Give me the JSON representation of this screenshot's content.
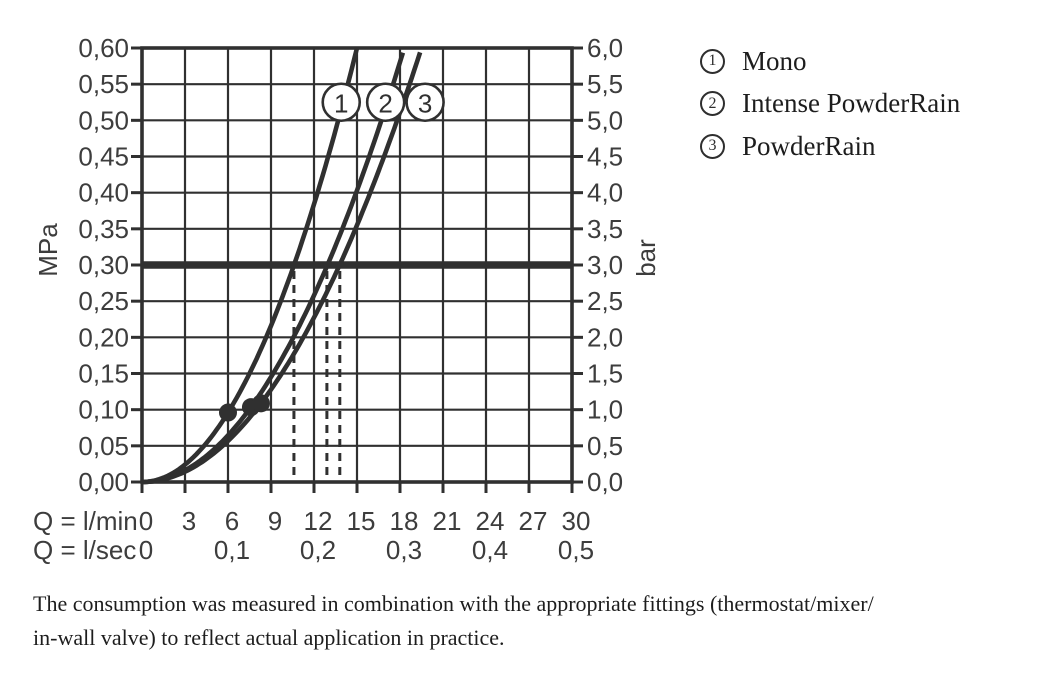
{
  "chart_data": {
    "type": "line",
    "description": "Flow rate vs. pressure diagram for shower spray modes",
    "x_axis": {
      "row1_label": "Q = l/min",
      "row2_label": "Q = l/sec",
      "lmin_ticks": [
        "0",
        "3",
        "6",
        "9",
        "12",
        "15",
        "18",
        "21",
        "24",
        "27",
        "30"
      ],
      "lsec_ticks": [
        "0",
        "0,1",
        "0,2",
        "0,3",
        "0,4",
        "0,5"
      ],
      "lmin_range": [
        0,
        30
      ],
      "grid_step_lmin": 3
    },
    "y_axis_left": {
      "unit": "MPa",
      "ticks_top_to_bottom": [
        "0,60",
        "0,55",
        "0,50",
        "0,45",
        "0,40",
        "0,35",
        "0,30",
        "0,25",
        "0,20",
        "0,15",
        "0,10",
        "0,05",
        "0,00"
      ],
      "range_mpa": [
        0,
        0.6
      ],
      "step_mpa": 0.05
    },
    "y_axis_right": {
      "unit": "bar",
      "ticks_top_to_bottom": [
        "6,0",
        "5,5",
        "5,0",
        "4,5",
        "4,0",
        "3,5",
        "3,0",
        "2,5",
        "2,0",
        "1,5",
        "1,0",
        "0,5",
        "0,0"
      ],
      "range_bar": [
        0,
        6
      ],
      "step_bar": 0.5
    },
    "reference_line": {
      "mpa": 0.3,
      "bar": 3.0
    },
    "series": [
      {
        "id": "1",
        "name": "Mono",
        "q_lmin_at_0_6_mpa": 15.0,
        "q_lmin_at_3_bar": 10.6,
        "marker_q_lmin": 6.0,
        "marker_mpa": 0.1,
        "label_circle_q_lmin": 13.9
      },
      {
        "id": "2",
        "name": "Intense PowderRain",
        "q_lmin_at_0_6_mpa": 18.3,
        "q_lmin_at_3_bar": 12.9,
        "marker_q_lmin": 7.6,
        "marker_mpa": 0.1,
        "label_circle_q_lmin": 17.0
      },
      {
        "id": "3",
        "name": "PowderRain",
        "q_lmin_at_0_6_mpa": 19.5,
        "q_lmin_at_3_bar": 13.8,
        "marker_q_lmin": 8.3,
        "marker_mpa": 0.1,
        "label_circle_q_lmin": 19.75
      }
    ],
    "legend": [
      {
        "symbol": "1",
        "label": "Mono"
      },
      {
        "symbol": "2",
        "label": "Intense PowderRain"
      },
      {
        "symbol": "3",
        "label": "PowderRain"
      }
    ],
    "grid": true,
    "legend_position": "top-right",
    "colors": {
      "ink": "#303030",
      "text": "#3d3d3d",
      "background": "#ffffff"
    }
  },
  "note": {
    "lines": [
      "The consumption was measured in combination with the appropriate fittings (thermostat/mixer/",
      "in-wall valve) to reflect actual application in practice."
    ]
  }
}
